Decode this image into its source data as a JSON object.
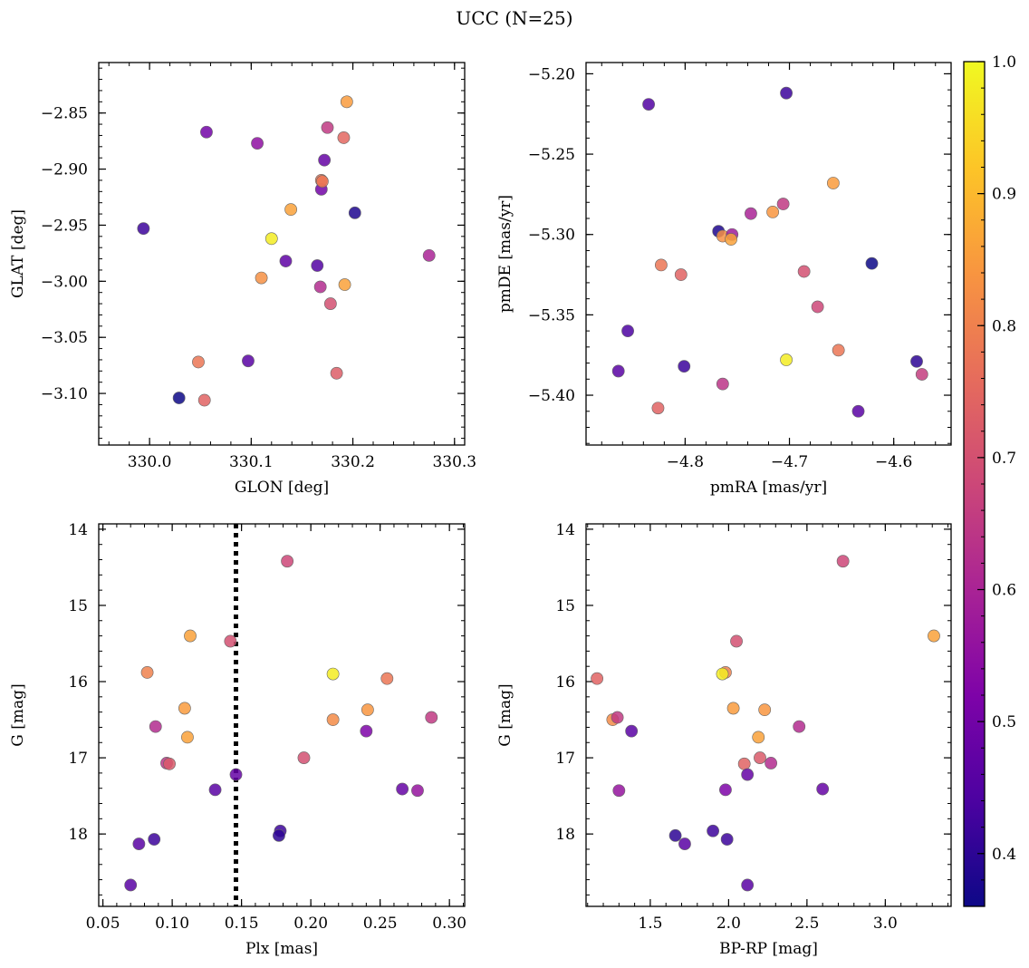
{
  "figure": {
    "title": "UCC (N=25)"
  },
  "colorbar": {
    "range": [
      0.36,
      1.0
    ],
    "ticks": [
      0.4,
      0.5,
      0.6,
      0.7,
      0.8,
      0.9,
      1.0
    ],
    "tick_labels": [
      "0.4",
      "0.5",
      "0.6",
      "0.7",
      "0.8",
      "0.9",
      "1.0"
    ],
    "colormap": "plasma"
  },
  "chart_data": [
    {
      "type": "scatter",
      "xlabel": "GLON [deg]",
      "ylabel": "GLAT [deg]",
      "xlim": [
        329.95,
        330.31
      ],
      "ylim": [
        -3.146,
        -2.805
      ],
      "xticks": [
        330.0,
        330.1,
        330.2,
        330.3
      ],
      "xtick_labels": [
        "330.0",
        "330.1",
        "330.2",
        "330.3"
      ],
      "yticks": [
        -3.1,
        -3.05,
        -3.0,
        -2.95,
        -2.9,
        -2.85
      ],
      "ytick_labels": [
        "−3.10",
        "−3.05",
        "−3.00",
        "−2.95",
        "−2.90",
        "−2.85"
      ],
      "x_minor_step": 0.02,
      "y_minor_step": 0.01,
      "x": [
        330.056,
        330.106,
        329.994,
        330.134,
        330.165,
        330.169,
        330.172,
        330.169,
        330.202,
        330.194,
        330.175,
        330.191,
        330.275,
        330.178,
        330.184,
        330.029,
        330.054,
        330.097,
        330.048,
        330.168,
        330.17,
        330.139,
        330.192,
        330.12,
        330.11
      ],
      "y": [
        -2.867,
        -2.877,
        -2.953,
        -2.982,
        -2.986,
        -2.918,
        -2.892,
        -2.91,
        -2.939,
        -2.84,
        -2.863,
        -2.872,
        -2.977,
        -3.02,
        -3.082,
        -3.104,
        -3.106,
        -3.071,
        -3.072,
        -3.005,
        -2.911,
        -2.936,
        -3.003,
        -2.962,
        -2.997
      ],
      "c": [
        0.5,
        0.55,
        0.42,
        0.47,
        0.45,
        0.5,
        0.48,
        0.78,
        0.38,
        0.85,
        0.65,
        0.75,
        0.6,
        0.7,
        0.73,
        0.36,
        0.74,
        0.46,
        0.78,
        0.62,
        0.78,
        0.86,
        0.86,
        0.98,
        0.83
      ]
    },
    {
      "type": "scatter",
      "xlabel": "pmRA [mas/yr]",
      "ylabel": "pmDE [mas/yr]",
      "xlim": [
        -4.895,
        -4.545
      ],
      "ylim": [
        -5.431,
        -5.193
      ],
      "xticks": [
        -4.8,
        -4.7,
        -4.6
      ],
      "xtick_labels": [
        "−4.8",
        "−4.7",
        "−4.6"
      ],
      "yticks": [
        -5.4,
        -5.35,
        -5.3,
        -5.25,
        -5.2
      ],
      "ytick_labels": [
        "−5.40",
        "−5.35",
        "−5.30",
        "−5.25",
        "−5.20"
      ],
      "x_minor_step": 0.02,
      "y_minor_step": 0.01,
      "x": [
        -4.835,
        -4.703,
        -4.658,
        -4.706,
        -4.716,
        -4.737,
        -4.768,
        -4.764,
        -4.755,
        -4.756,
        -4.823,
        -4.804,
        -4.686,
        -4.621,
        -4.673,
        -4.855,
        -4.653,
        -4.578,
        -4.573,
        -4.864,
        -4.801,
        -4.703,
        -4.764,
        -4.826,
        -4.634
      ],
      "y": [
        -5.219,
        -5.212,
        -5.268,
        -5.281,
        -5.286,
        -5.287,
        -5.298,
        -5.301,
        -5.3,
        -5.303,
        -5.319,
        -5.325,
        -5.323,
        -5.318,
        -5.345,
        -5.36,
        -5.372,
        -5.379,
        -5.387,
        -5.385,
        -5.382,
        -5.378,
        -5.393,
        -5.408,
        -5.41
      ],
      "c": [
        0.45,
        0.42,
        0.85,
        0.65,
        0.84,
        0.6,
        0.38,
        0.83,
        0.58,
        0.86,
        0.78,
        0.74,
        0.7,
        0.36,
        0.68,
        0.44,
        0.78,
        0.4,
        0.66,
        0.46,
        0.42,
        0.98,
        0.64,
        0.74,
        0.46
      ]
    },
    {
      "type": "scatter",
      "xlabel": "Plx [mas]",
      "ylabel": "G [mag]",
      "xlim": [
        0.047,
        0.311
      ],
      "ylim": [
        18.95,
        13.93
      ],
      "xticks": [
        0.05,
        0.1,
        0.15,
        0.2,
        0.25,
        0.3
      ],
      "xtick_labels": [
        "0.05",
        "0.10",
        "0.15",
        "0.20",
        "0.25",
        "0.30"
      ],
      "yticks": [
        14,
        15,
        16,
        17,
        18
      ],
      "ytick_labels": [
        "14",
        "15",
        "16",
        "17",
        "18"
      ],
      "x_minor_step": 0.01,
      "y_minor_step": 0.2,
      "vline_x": 0.146,
      "x": [
        0.183,
        0.113,
        0.142,
        0.082,
        0.216,
        0.255,
        0.109,
        0.241,
        0.216,
        0.287,
        0.088,
        0.24,
        0.111,
        0.195,
        0.096,
        0.098,
        0.131,
        0.146,
        0.266,
        0.277,
        0.178,
        0.177,
        0.087,
        0.076,
        0.07
      ],
      "y": [
        14.42,
        15.4,
        15.47,
        15.88,
        15.9,
        15.96,
        16.35,
        16.37,
        16.5,
        16.47,
        16.59,
        16.65,
        16.73,
        17.0,
        17.07,
        17.08,
        17.42,
        17.22,
        17.41,
        17.43,
        17.96,
        18.02,
        18.07,
        18.13,
        18.67
      ],
      "c": [
        0.68,
        0.86,
        0.7,
        0.8,
        0.98,
        0.78,
        0.85,
        0.84,
        0.82,
        0.65,
        0.62,
        0.52,
        0.86,
        0.7,
        0.64,
        0.72,
        0.46,
        0.48,
        0.48,
        0.56,
        0.42,
        0.4,
        0.42,
        0.46,
        0.46
      ]
    },
    {
      "type": "scatter",
      "xlabel": "BP-RP [mag]",
      "ylabel": "G [mag]",
      "xlim": [
        1.09,
        3.42
      ],
      "ylim": [
        18.95,
        13.93
      ],
      "xticks": [
        1.5,
        2.0,
        2.5,
        3.0
      ],
      "xtick_labels": [
        "1.5",
        "2.0",
        "2.5",
        "3.0"
      ],
      "yticks": [
        14,
        15,
        16,
        17,
        18
      ],
      "ytick_labels": [
        "14",
        "15",
        "16",
        "17",
        "18"
      ],
      "x_minor_step": 0.1,
      "y_minor_step": 0.2,
      "x": [
        2.73,
        3.31,
        2.05,
        1.16,
        1.98,
        1.96,
        2.03,
        2.23,
        1.26,
        1.29,
        2.45,
        1.38,
        2.19,
        2.2,
        2.1,
        2.27,
        2.12,
        1.98,
        2.6,
        1.3,
        1.66,
        1.72,
        1.9,
        1.99,
        2.12
      ],
      "y": [
        14.42,
        15.4,
        15.47,
        15.96,
        15.88,
        15.9,
        16.35,
        16.37,
        16.5,
        16.47,
        16.59,
        16.65,
        16.73,
        17.0,
        17.08,
        17.07,
        17.22,
        17.42,
        17.41,
        17.43,
        18.02,
        18.13,
        17.96,
        18.07,
        18.67
      ],
      "c": [
        0.68,
        0.86,
        0.7,
        0.74,
        0.8,
        0.98,
        0.85,
        0.84,
        0.82,
        0.65,
        0.62,
        0.46,
        0.86,
        0.72,
        0.74,
        0.62,
        0.48,
        0.52,
        0.48,
        0.56,
        0.4,
        0.46,
        0.42,
        0.42,
        0.46
      ]
    }
  ]
}
